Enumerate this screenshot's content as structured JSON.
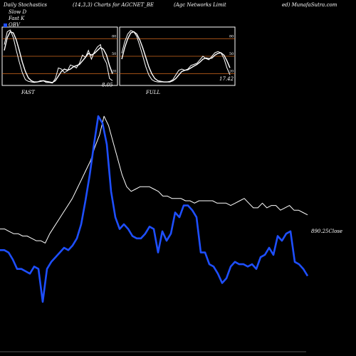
{
  "header": {
    "left": "Daily Stochastics",
    "center": "(14,3,3) Charts for AGCNET_BE",
    "right1": "(Agc Networks Limit",
    "right2": "ed) MunafaSutra.com"
  },
  "legend": [
    {
      "label": "Slow D",
      "color": "#000000"
    },
    {
      "label": "Fast K",
      "color": "#000000"
    },
    {
      "label": "OBV",
      "color": "#1e4fff"
    }
  ],
  "colors": {
    "obv": "#1e4fff",
    "close": "#ffffff",
    "band": "#d2691e",
    "stoch": "#ffffff",
    "bg": "#000000"
  },
  "chart_data": [
    {
      "type": "line",
      "panel": "FAST",
      "title": "FAST",
      "yticks": [
        80,
        50,
        20
      ],
      "ylim": [
        0,
        100
      ],
      "bands": [
        80,
        50,
        20
      ],
      "last_value_label": "8.05",
      "series": [
        {
          "name": "Fast K",
          "values": [
            70,
            92,
            95,
            82,
            60,
            40,
            22,
            10,
            7,
            6,
            5,
            6,
            8,
            8,
            5,
            5,
            4,
            12,
            30,
            28,
            22,
            25,
            35,
            33,
            30,
            38,
            52,
            48,
            60,
            45,
            58,
            66,
            70,
            48,
            38,
            12,
            8
          ]
        },
        {
          "name": "Slow D",
          "values": [
            60,
            82,
            92,
            90,
            78,
            60,
            40,
            24,
            13,
            8,
            6,
            6,
            7,
            8,
            7,
            6,
            5,
            8,
            16,
            24,
            28,
            26,
            28,
            32,
            34,
            36,
            42,
            48,
            55,
            52,
            55,
            60,
            65,
            62,
            52,
            34,
            20
          ]
        }
      ]
    },
    {
      "type": "line",
      "panel": "FULL",
      "title": "FULL",
      "yticks": [
        80,
        50,
        20
      ],
      "ylim": [
        0,
        100
      ],
      "bands": [
        80,
        50,
        20
      ],
      "last_value_label": "17.42",
      "series": [
        {
          "name": "Fast K",
          "values": [
            55,
            75,
            88,
            94,
            92,
            84,
            68,
            50,
            32,
            18,
            10,
            7,
            6,
            6,
            6,
            6,
            7,
            10,
            18,
            26,
            28,
            26,
            28,
            34,
            36,
            38,
            44,
            50,
            46,
            44,
            50,
            56,
            58,
            56,
            46,
            30,
            18
          ]
        },
        {
          "name": "Slow D",
          "values": [
            45,
            65,
            80,
            90,
            92,
            88,
            78,
            64,
            48,
            32,
            20,
            12,
            8,
            7,
            6,
            6,
            6,
            8,
            12,
            18,
            24,
            26,
            27,
            30,
            33,
            36,
            40,
            45,
            47,
            46,
            47,
            52,
            55,
            56,
            52,
            42,
            30
          ]
        }
      ]
    },
    {
      "type": "line",
      "panel": "main",
      "last_close_label": "890.25",
      "last_close_text": "Close",
      "series": [
        {
          "name": "Close",
          "values": [
            48,
            48,
            47,
            46,
            46,
            45,
            45,
            44,
            43,
            43,
            42,
            46,
            49,
            52,
            55,
            58,
            61,
            65,
            69,
            73,
            77,
            83,
            88,
            96,
            92,
            85,
            78,
            71,
            66,
            64,
            65,
            66,
            66,
            66,
            65,
            64,
            62,
            62,
            61,
            61,
            61,
            60,
            60,
            59,
            60,
            60,
            60,
            60,
            59,
            59,
            59,
            58,
            59,
            60,
            61,
            59,
            57,
            57,
            59,
            57,
            58,
            58,
            56,
            57,
            58,
            56,
            56,
            55,
            54
          ]
        },
        {
          "name": "OBV",
          "values": [
            39,
            39,
            38,
            35,
            31,
            31,
            30,
            29,
            32,
            31,
            17,
            31,
            34,
            36,
            38,
            40,
            39,
            41,
            44,
            50,
            60,
            71,
            84,
            96,
            93,
            84,
            64,
            53,
            48,
            50,
            48,
            45,
            44,
            44,
            46,
            49,
            48,
            38,
            47,
            43,
            46,
            55,
            53,
            58,
            58,
            56,
            53,
            38,
            38,
            33,
            32,
            29,
            25,
            27,
            32,
            34,
            33,
            33,
            32,
            33,
            31,
            36,
            37,
            40,
            37,
            45,
            43,
            46,
            47,
            34,
            33,
            31,
            28
          ]
        }
      ]
    }
  ]
}
